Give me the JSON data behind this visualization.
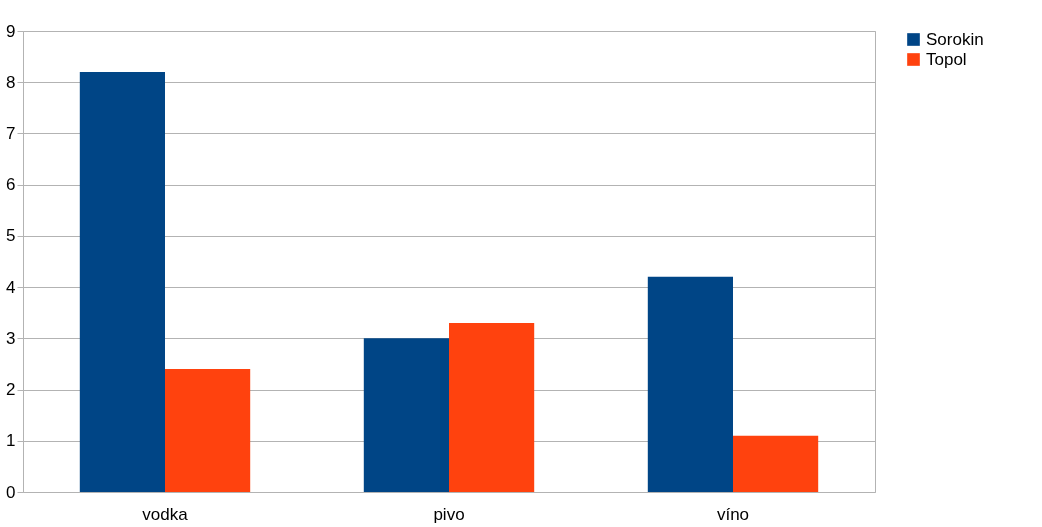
{
  "chart_data": {
    "type": "bar",
    "categories": [
      "vodka",
      "pivo",
      "víno"
    ],
    "series": [
      {
        "name": "Sorokin",
        "color": "#004586",
        "values": [
          8.2,
          3.0,
          4.2
        ]
      },
      {
        "name": "Topol",
        "color": "#ff420e",
        "values": [
          2.4,
          3.3,
          1.1
        ]
      }
    ],
    "ylim": [
      0,
      9
    ],
    "yticks": [
      0,
      1,
      2,
      3,
      4,
      5,
      6,
      7,
      8,
      9
    ],
    "grid": "y",
    "legend": "right"
  }
}
